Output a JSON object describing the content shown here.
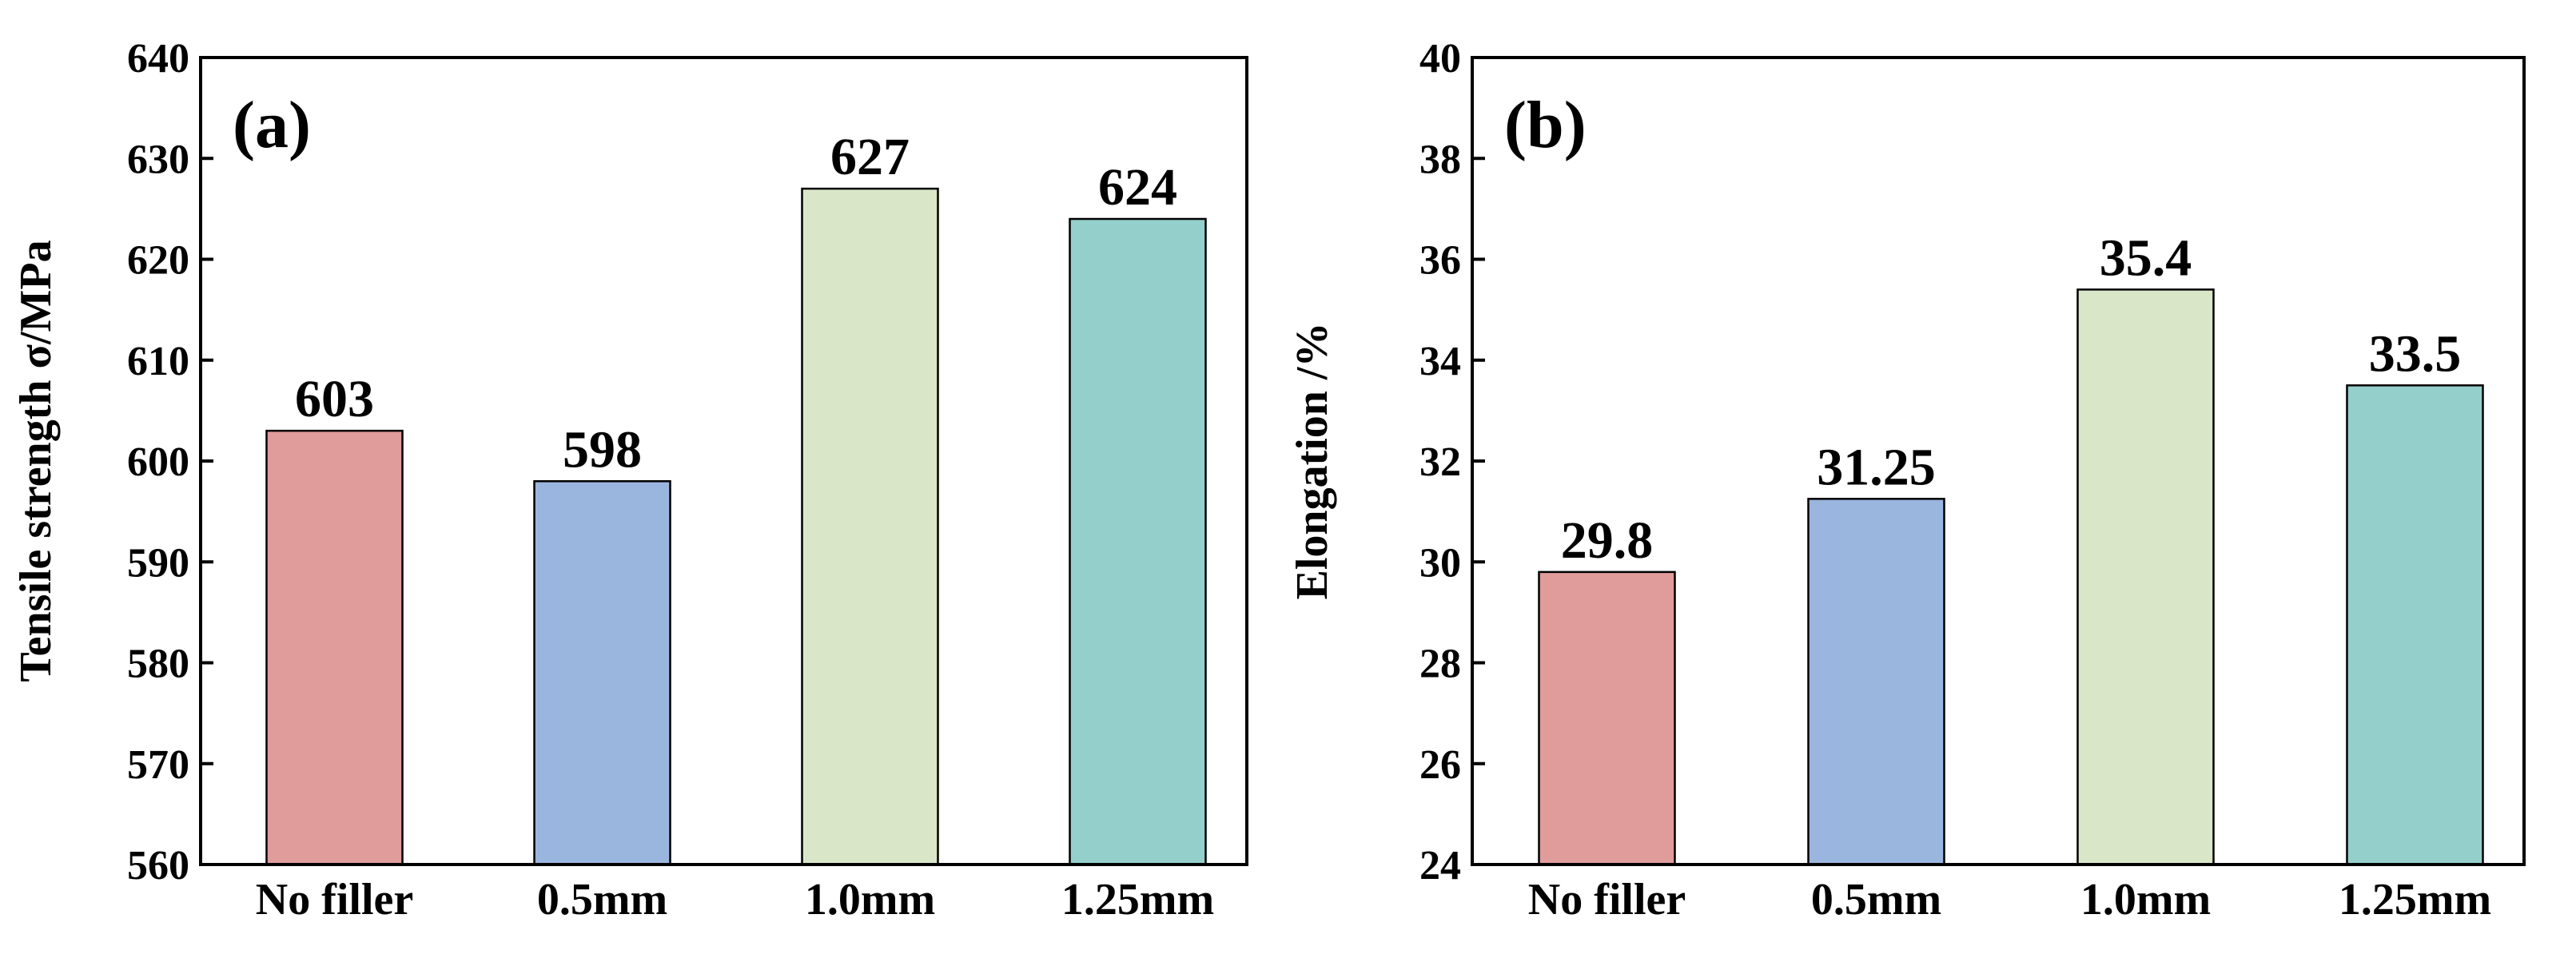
{
  "chart_data": [
    {
      "type": "bar",
      "panel_label": "(a)",
      "categories": [
        "No filler",
        "0.5mm",
        "1.0mm",
        "1.25mm"
      ],
      "values": [
        603,
        598,
        627,
        624
      ],
      "data_labels": [
        "603",
        "598",
        "627",
        "624"
      ],
      "colors": [
        "#e09b9b",
        "#9ab5de",
        "#d9e6c8",
        "#95cfcc"
      ],
      "ylabel": "Tensile strength σ/MPa",
      "xlabel": "",
      "ylim": [
        560,
        640
      ],
      "yticks": [
        560,
        570,
        580,
        590,
        600,
        610,
        620,
        630,
        640
      ],
      "grid": false
    },
    {
      "type": "bar",
      "panel_label": "(b)",
      "categories": [
        "No filler",
        "0.5mm",
        "1.0mm",
        "1.25mm"
      ],
      "values": [
        29.8,
        31.25,
        35.4,
        33.5
      ],
      "data_labels": [
        "29.8",
        "31.25",
        "35.4",
        "33.5"
      ],
      "colors": [
        "#e09b9b",
        "#9ab5de",
        "#d9e6c8",
        "#95cfcc"
      ],
      "ylabel": "Elongation /%",
      "xlabel": "",
      "ylim": [
        24,
        40
      ],
      "yticks": [
        24,
        26,
        28,
        30,
        32,
        34,
        36,
        38,
        40
      ],
      "grid": false
    }
  ]
}
